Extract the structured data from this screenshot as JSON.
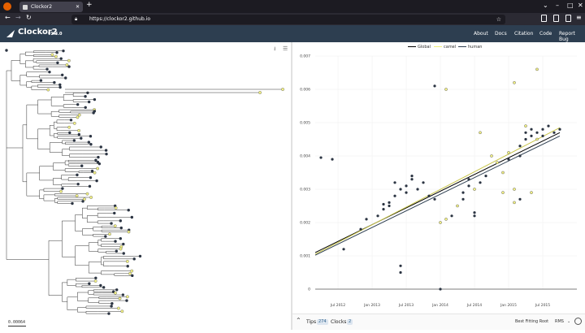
{
  "browser": {
    "tab_title": "Clockor2",
    "url": "https://clockor2.github.io"
  },
  "app": {
    "name": "Clockor2",
    "version": "v1.3.0",
    "nav": [
      "About",
      "Docs",
      "Citation",
      "Code",
      "Report Bug"
    ]
  },
  "tree": {
    "scale_label": "0.00064"
  },
  "footer": {
    "tips_label": "Tips",
    "tips_count": "274",
    "clocks_label": "Clocks",
    "clocks_count": "2",
    "fit_label": "Best Fitting Root",
    "fit_metric": "RMS"
  },
  "colors": {
    "navbar": "#2d3e50",
    "global": "#000000",
    "camel": "#f0f07a",
    "human": "#2d3e50",
    "tip_dark": "#2b3442",
    "tip_yellow": "#f4f284"
  },
  "chart_data": {
    "type": "scatter",
    "title": "",
    "xlabel": "",
    "ylabel": "",
    "xlim": [
      "2012-03",
      "2016-01"
    ],
    "ylim": [
      0,
      0.007
    ],
    "x_ticks": [
      "Jul 2012",
      "Jan 2013",
      "Jul 2013",
      "Jan 2014",
      "Jul 2014",
      "Jan 2015",
      "Jul 2015"
    ],
    "y_ticks": [
      "0",
      "0.001",
      "0.002",
      "0.003",
      "0.004",
      "0.005",
      "0.006",
      "0.007"
    ],
    "grid": true,
    "legend": "top-center",
    "series": [
      {
        "name": "Global",
        "color": "#000000",
        "line": [
          [
            "2012-03",
            0.0011
          ],
          [
            "2015-10",
            0.0047
          ]
        ]
      },
      {
        "name": "camel",
        "color": "#f0f07a",
        "line": [
          [
            "2012-03",
            0.00105
          ],
          [
            "2015-10",
            0.00485
          ]
        ]
      },
      {
        "name": "human",
        "color": "#2d3e50",
        "line": [
          [
            "2012-03",
            0.00102
          ],
          [
            "2015-10",
            0.0046
          ]
        ]
      }
    ],
    "points": [
      {
        "x": "2012-04",
        "y": 0.00395,
        "g": "d"
      },
      {
        "x": "2012-06",
        "y": 0.0039,
        "g": "d"
      },
      {
        "x": "2012-08",
        "y": 0.0012,
        "g": "d"
      },
      {
        "x": "2012-11",
        "y": 0.0018,
        "g": "d"
      },
      {
        "x": "2012-12",
        "y": 0.0021,
        "g": "d"
      },
      {
        "x": "2013-02",
        "y": 0.0022,
        "g": "d"
      },
      {
        "x": "2013-03",
        "y": 0.0024,
        "g": "d"
      },
      {
        "x": "2013-03",
        "y": 0.00255,
        "g": "d"
      },
      {
        "x": "2013-04",
        "y": 0.0025,
        "g": "d"
      },
      {
        "x": "2013-04",
        "y": 0.0026,
        "g": "d"
      },
      {
        "x": "2013-05",
        "y": 0.0028,
        "g": "d"
      },
      {
        "x": "2013-05",
        "y": 0.0032,
        "g": "d"
      },
      {
        "x": "2013-06",
        "y": 0.003,
        "g": "d"
      },
      {
        "x": "2013-06",
        "y": 0.0007,
        "g": "d"
      },
      {
        "x": "2013-06",
        "y": 0.0005,
        "g": "d"
      },
      {
        "x": "2013-07",
        "y": 0.0029,
        "g": "d"
      },
      {
        "x": "2013-07",
        "y": 0.0031,
        "g": "d"
      },
      {
        "x": "2013-08",
        "y": 0.0033,
        "g": "d"
      },
      {
        "x": "2013-08",
        "y": 0.0034,
        "g": "d"
      },
      {
        "x": "2013-09",
        "y": 0.003,
        "g": "d"
      },
      {
        "x": "2013-10",
        "y": 0.0032,
        "g": "d"
      },
      {
        "x": "2013-11",
        "y": 0.0028,
        "g": "d"
      },
      {
        "x": "2013-12",
        "y": 0.0027,
        "g": "d"
      },
      {
        "x": "2013-12",
        "y": 0.0061,
        "g": "d"
      },
      {
        "x": "2014-02",
        "y": 0.006,
        "g": "y"
      },
      {
        "x": "2014-01",
        "y": 0.002,
        "g": "y"
      },
      {
        "x": "2014-02",
        "y": 0.0021,
        "g": "y"
      },
      {
        "x": "2014-03",
        "y": 0.0022,
        "g": "d"
      },
      {
        "x": "2014-04",
        "y": 0.0025,
        "g": "y"
      },
      {
        "x": "2014-05",
        "y": 0.0027,
        "g": "d"
      },
      {
        "x": "2014-05",
        "y": 0.0029,
        "g": "d"
      },
      {
        "x": "2014-06",
        "y": 0.0031,
        "g": "d"
      },
      {
        "x": "2014-06",
        "y": 0.0033,
        "g": "d"
      },
      {
        "x": "2014-07",
        "y": 0.003,
        "g": "y"
      },
      {
        "x": "2014-07",
        "y": 0.0023,
        "g": "d"
      },
      {
        "x": "2014-07",
        "y": 0.0022,
        "g": "d"
      },
      {
        "x": "2014-08",
        "y": 0.0047,
        "g": "y"
      },
      {
        "x": "2014-08",
        "y": 0.0032,
        "g": "d"
      },
      {
        "x": "2014-09",
        "y": 0.0034,
        "g": "d"
      },
      {
        "x": "2014-10",
        "y": 0.004,
        "g": "y"
      },
      {
        "x": "2014-11",
        "y": 0.0038,
        "g": "y"
      },
      {
        "x": "2014-12",
        "y": 0.0035,
        "g": "y"
      },
      {
        "x": "2015-01",
        "y": 0.0039,
        "g": "d"
      },
      {
        "x": "2015-01",
        "y": 0.0041,
        "g": "y"
      },
      {
        "x": "2015-02",
        "y": 0.003,
        "g": "y"
      },
      {
        "x": "2015-02",
        "y": 0.0026,
        "g": "y"
      },
      {
        "x": "2015-02",
        "y": 0.0062,
        "g": "y"
      },
      {
        "x": "2015-03",
        "y": 0.0027,
        "g": "d"
      },
      {
        "x": "2015-03",
        "y": 0.0043,
        "g": "d"
      },
      {
        "x": "2015-04",
        "y": 0.0045,
        "g": "d"
      },
      {
        "x": "2015-04",
        "y": 0.0047,
        "g": "d"
      },
      {
        "x": "2015-04",
        "y": 0.0049,
        "g": "y"
      },
      {
        "x": "2015-05",
        "y": 0.0046,
        "g": "d"
      },
      {
        "x": "2015-05",
        "y": 0.0048,
        "g": "d"
      },
      {
        "x": "2015-06",
        "y": 0.0045,
        "g": "y"
      },
      {
        "x": "2015-06",
        "y": 0.0047,
        "g": "d"
      },
      {
        "x": "2015-06",
        "y": 0.0066,
        "g": "y"
      },
      {
        "x": "2015-07",
        "y": 0.0046,
        "g": "d"
      },
      {
        "x": "2015-07",
        "y": 0.0048,
        "g": "d"
      },
      {
        "x": "2015-08",
        "y": 0.0049,
        "g": "d"
      },
      {
        "x": "2015-09",
        "y": 0.0047,
        "g": "d"
      },
      {
        "x": "2015-10",
        "y": 0.0048,
        "g": "d"
      },
      {
        "x": "2015-03",
        "y": 0.004,
        "g": "d"
      },
      {
        "x": "2015-05",
        "y": 0.0029,
        "g": "y"
      },
      {
        "x": "2014-12",
        "y": 0.0029,
        "g": "y"
      },
      {
        "x": "2014-01",
        "y": 0.0,
        "g": "d"
      }
    ]
  }
}
